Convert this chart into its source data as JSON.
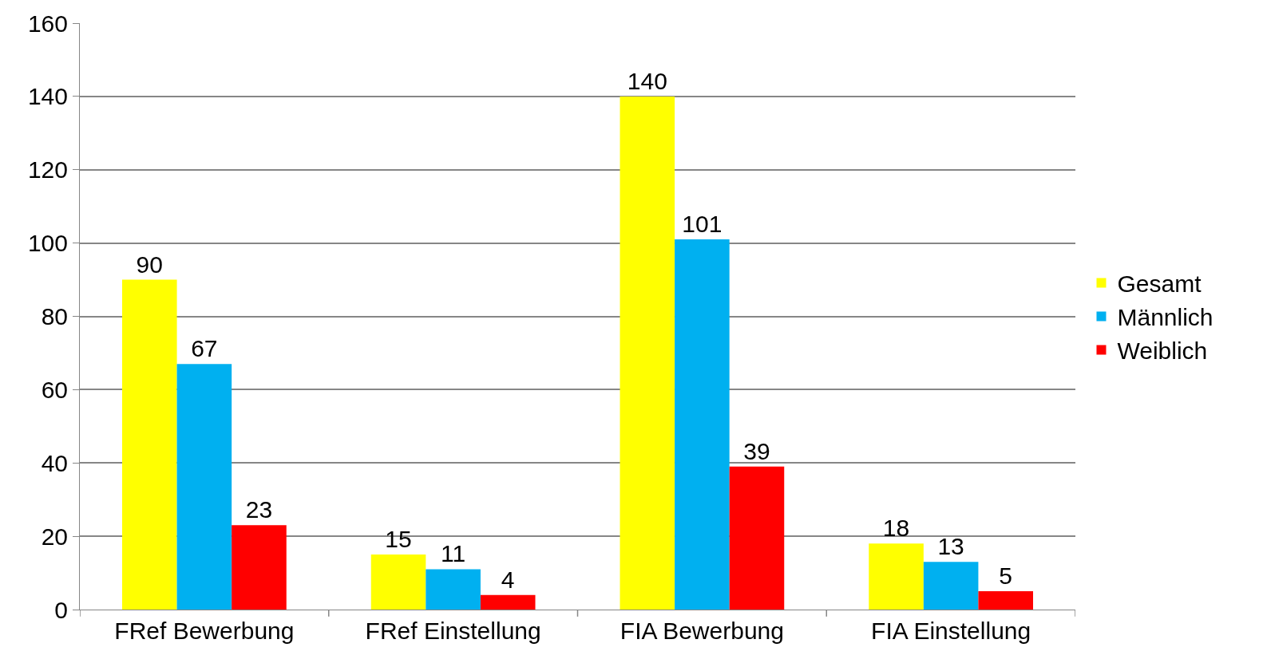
{
  "chart_data": {
    "type": "bar",
    "categories": [
      "FRef Bewerbung",
      "FRef Einstellung",
      "FIA Bewerbung",
      "FIA Einstellung"
    ],
    "series": [
      {
        "name": "Gesamt",
        "color": "#ffff00",
        "values": [
          90,
          15,
          140,
          18
        ]
      },
      {
        "name": "Männlich",
        "color": "#00b0f0",
        "values": [
          67,
          11,
          101,
          13
        ]
      },
      {
        "name": "Weiblich",
        "color": "#ff0000",
        "values": [
          23,
          4,
          39,
          5
        ]
      }
    ],
    "ylim": [
      0,
      160
    ],
    "yticks": [
      0,
      20,
      40,
      60,
      80,
      100,
      120,
      140,
      160
    ],
    "grid": "y",
    "legend": "right",
    "data_labels": true
  }
}
